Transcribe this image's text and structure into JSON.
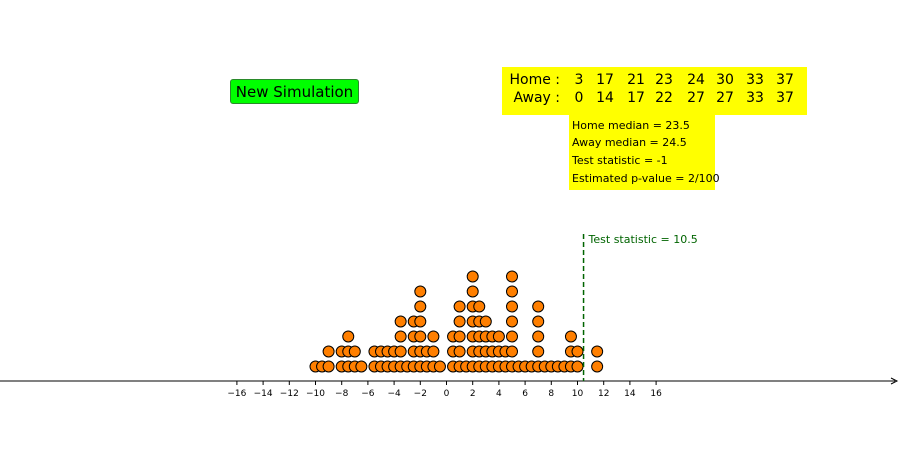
{
  "button": {
    "label": "New Simulation"
  },
  "scores": {
    "home_label": "Home :",
    "away_label": "Away :",
    "home": [
      "3",
      "17",
      "21",
      "23",
      "24",
      "30",
      "33",
      "37"
    ],
    "away": [
      "0",
      "14",
      "17",
      "22",
      "27",
      "27",
      "33",
      "37"
    ]
  },
  "stats": {
    "home_median": "Home median = 23.5",
    "away_median": "Away median = 24.5",
    "test_statistic": "Test statistic = -1",
    "p_value": "Estimated p-value = 2/100"
  },
  "observed": {
    "label": "Test statistic = 10.5",
    "value": 10.5,
    "color": "#006400"
  },
  "colors": {
    "dot": "#ff7f00",
    "button": "#00ff00",
    "box": "#ffff00"
  },
  "chart_data": {
    "type": "scatter",
    "xlim": [
      -17,
      17.5
    ],
    "ticks": [
      -16,
      -14,
      -12,
      -10,
      -8,
      -6,
      -4,
      -2,
      0,
      2,
      4,
      6,
      8,
      10,
      12,
      14,
      16
    ],
    "tick_labels": [
      "−16",
      "−14",
      "−12",
      "−10",
      "−8",
      "−6",
      "−4",
      "−2",
      "0",
      "2",
      "4",
      "6",
      "8",
      "10",
      "12",
      "14",
      "16"
    ],
    "dot_counts": [
      {
        "x": -10,
        "count": 1
      },
      {
        "x": -9.5,
        "count": 1
      },
      {
        "x": -9,
        "count": 2
      },
      {
        "x": -8,
        "count": 2
      },
      {
        "x": -7.5,
        "count": 3
      },
      {
        "x": -7,
        "count": 2
      },
      {
        "x": -6.5,
        "count": 1
      },
      {
        "x": -5.5,
        "count": 2
      },
      {
        "x": -5,
        "count": 2
      },
      {
        "x": -4.5,
        "count": 2
      },
      {
        "x": -4,
        "count": 2
      },
      {
        "x": -3.5,
        "count": 4
      },
      {
        "x": -3,
        "count": 1
      },
      {
        "x": -2.5,
        "count": 4
      },
      {
        "x": -2,
        "count": 6
      },
      {
        "x": -1.5,
        "count": 2
      },
      {
        "x": -1,
        "count": 3
      },
      {
        "x": -0.5,
        "count": 1
      },
      {
        "x": 0.5,
        "count": 3
      },
      {
        "x": 1,
        "count": 5
      },
      {
        "x": 1.5,
        "count": 1
      },
      {
        "x": 2,
        "count": 7
      },
      {
        "x": 2.5,
        "count": 5
      },
      {
        "x": 3,
        "count": 4
      },
      {
        "x": 3.5,
        "count": 3
      },
      {
        "x": 4,
        "count": 3
      },
      {
        "x": 4.5,
        "count": 2
      },
      {
        "x": 5,
        "count": 7
      },
      {
        "x": 5.5,
        "count": 1
      },
      {
        "x": 6,
        "count": 1
      },
      {
        "x": 6.5,
        "count": 1
      },
      {
        "x": 7,
        "count": 5
      },
      {
        "x": 7.5,
        "count": 1
      },
      {
        "x": 8,
        "count": 1
      },
      {
        "x": 8.5,
        "count": 1
      },
      {
        "x": 9,
        "count": 1
      },
      {
        "x": 9.5,
        "count": 3
      },
      {
        "x": 10,
        "count": 2
      },
      {
        "x": 11.5,
        "count": 2
      }
    ]
  }
}
